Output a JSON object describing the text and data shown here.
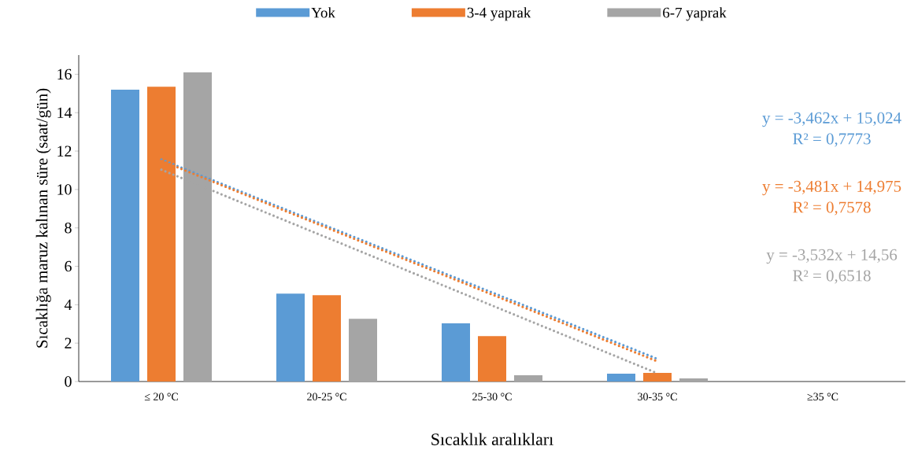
{
  "chart_data": {
    "type": "bar",
    "categories": [
      "≤ 20 °C",
      "20-25 °C",
      "25-30 °C",
      "30-35 °C",
      "≥35 °C"
    ],
    "xlabel": "Sıcaklık aralıkları",
    "ylabel": "Sıcaklığa maruz kalınan süre (saat/gün)",
    "ylim": [
      0,
      17
    ],
    "yticks": [
      0,
      2,
      4,
      6,
      8,
      10,
      12,
      14,
      16
    ],
    "legend": "top",
    "series": [
      {
        "name": "Yok",
        "color": "#5b9bd5",
        "values": [
          15.2,
          4.58,
          3.03,
          0.41,
          0
        ]
      },
      {
        "name": "3-4 yaprak",
        "color": "#ed7d31",
        "values": [
          15.35,
          4.5,
          2.37,
          0.45,
          0
        ]
      },
      {
        "name": "6-7 yaprak",
        "color": "#a5a5a5",
        "values": [
          16.1,
          3.27,
          0.33,
          0.16,
          0
        ]
      },
      {
        "type": "line",
        "color": "#5b9bd5",
        "line_style": "dotted",
        "values": [
          11.56,
          8.1,
          4.64,
          1.18,
          null
        ]
      },
      {
        "type": "line",
        "color": "#ed7d31",
        "line_style": "dotted",
        "values": [
          11.49,
          8.01,
          4.53,
          1.05,
          null
        ]
      },
      {
        "type": "line",
        "color": "#a5a5a5",
        "line_style": "dotted",
        "values": [
          11.03,
          7.5,
          3.96,
          0.43,
          null
        ]
      }
    ],
    "annotations": [
      "y = -3,462x + 15,024",
      "R² = 0,7773",
      "y = -3,481x + 14,975",
      "R² = 0,7578",
      "y = -3,532x + 14,56",
      "R² = 0,6518"
    ]
  }
}
